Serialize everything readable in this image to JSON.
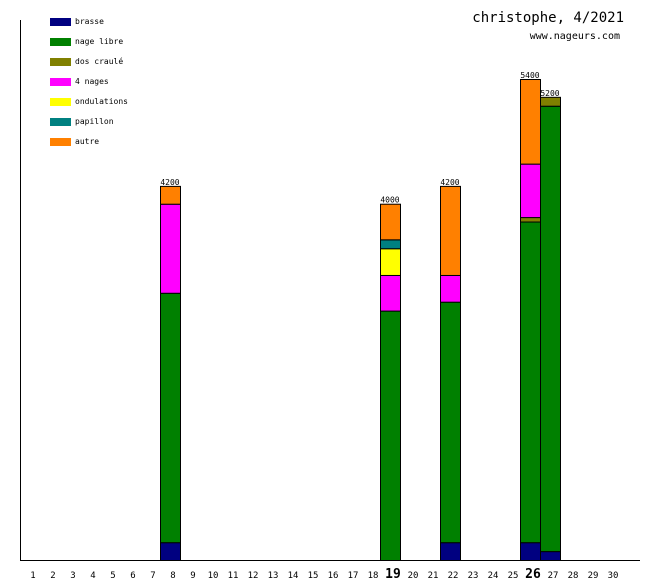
{
  "header": {
    "title": "christophe, 4/2021",
    "site": "www.nageurs.com"
  },
  "chart_data": {
    "type": "stacked-bar",
    "xlabel": "",
    "ylabel": "",
    "categories": [
      "1",
      "2",
      "3",
      "4",
      "5",
      "6",
      "7",
      "8",
      "9",
      "10",
      "11",
      "12",
      "13",
      "14",
      "15",
      "16",
      "17",
      "18",
      "19",
      "20",
      "21",
      "22",
      "23",
      "24",
      "25",
      "26",
      "27",
      "28",
      "29",
      "30"
    ],
    "bold_categories": [
      "19",
      "26"
    ],
    "ylim": [
      0,
      5400
    ],
    "grid": false,
    "legend_position": "top-left",
    "series": [
      {
        "name": "brasse",
        "color": "#000080",
        "values": {
          "8": 200,
          "22": 200,
          "26": 200,
          "27": 100
        }
      },
      {
        "name": "nage libre",
        "color": "#008000",
        "values": {
          "8": 2800,
          "19": 2800,
          "22": 2700,
          "26": 3600,
          "27": 5000
        }
      },
      {
        "name": "dos craulé",
        "color": "#808000",
        "values": {
          "26": 50,
          "27": 100
        }
      },
      {
        "name": "4 nages",
        "color": "#ff00ff",
        "values": {
          "8": 1000,
          "19": 400,
          "22": 300,
          "26": 600
        }
      },
      {
        "name": "ondulations",
        "color": "#ffff00",
        "values": {
          "19": 300
        }
      },
      {
        "name": "papillon",
        "color": "#008080",
        "values": {
          "19": 100
        }
      },
      {
        "name": "autre",
        "color": "#ff8000",
        "values": {
          "8": 200,
          "19": 400,
          "22": 1000,
          "26": 950
        }
      }
    ],
    "totals": {
      "8": "4200",
      "19": "4000",
      "22": "4200",
      "26": "5400",
      "27": "5200"
    }
  }
}
